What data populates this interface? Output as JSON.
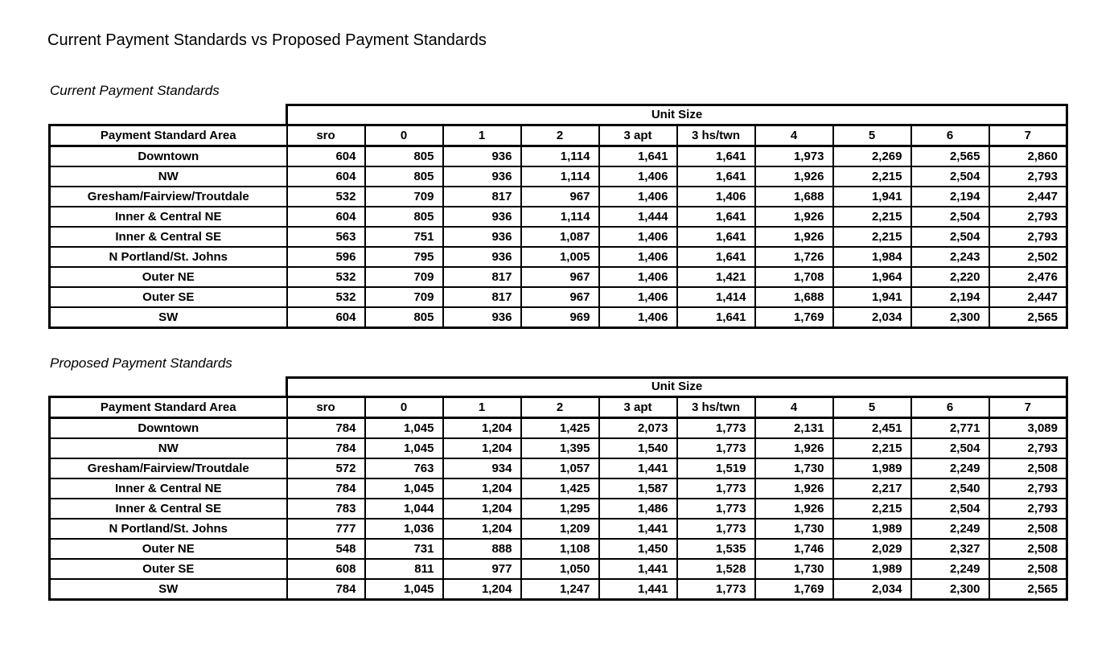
{
  "page_title": "Current Payment Standards vs Proposed Payment Standards",
  "colors": {
    "text": "#000000",
    "background": "#ffffff",
    "table_border": "#000000"
  },
  "tables": [
    {
      "section_label": "Current Payment Standards",
      "unit_size_label": "Unit Size",
      "area_header": "Payment Standard Area",
      "columns": [
        "sro",
        "0",
        "1",
        "2",
        "3 apt",
        "3 hs/twn",
        "4",
        "5",
        "6",
        "7"
      ],
      "rows": [
        {
          "area": "Downtown",
          "values": [
            "604",
            "805",
            "936",
            "1,114",
            "1,641",
            "1,641",
            "1,973",
            "2,269",
            "2,565",
            "2,860"
          ]
        },
        {
          "area": "NW",
          "values": [
            "604",
            "805",
            "936",
            "1,114",
            "1,406",
            "1,641",
            "1,926",
            "2,215",
            "2,504",
            "2,793"
          ]
        },
        {
          "area": "Gresham/Fairview/Troutdale",
          "values": [
            "532",
            "709",
            "817",
            "967",
            "1,406",
            "1,406",
            "1,688",
            "1,941",
            "2,194",
            "2,447"
          ]
        },
        {
          "area": "Inner & Central NE",
          "values": [
            "604",
            "805",
            "936",
            "1,114",
            "1,444",
            "1,641",
            "1,926",
            "2,215",
            "2,504",
            "2,793"
          ]
        },
        {
          "area": "Inner & Central SE",
          "values": [
            "563",
            "751",
            "936",
            "1,087",
            "1,406",
            "1,641",
            "1,926",
            "2,215",
            "2,504",
            "2,793"
          ]
        },
        {
          "area": "N Portland/St. Johns",
          "values": [
            "596",
            "795",
            "936",
            "1,005",
            "1,406",
            "1,641",
            "1,726",
            "1,984",
            "2,243",
            "2,502"
          ]
        },
        {
          "area": "Outer NE",
          "values": [
            "532",
            "709",
            "817",
            "967",
            "1,406",
            "1,421",
            "1,708",
            "1,964",
            "2,220",
            "2,476"
          ]
        },
        {
          "area": "Outer SE",
          "values": [
            "532",
            "709",
            "817",
            "967",
            "1,406",
            "1,414",
            "1,688",
            "1,941",
            "2,194",
            "2,447"
          ]
        },
        {
          "area": "SW",
          "values": [
            "604",
            "805",
            "936",
            "969",
            "1,406",
            "1,641",
            "1,769",
            "2,034",
            "2,300",
            "2,565"
          ]
        }
      ]
    },
    {
      "section_label": "Proposed Payment Standards",
      "unit_size_label": "Unit Size",
      "area_header": "Payment Standard Area",
      "columns": [
        "sro",
        "0",
        "1",
        "2",
        "3 apt",
        "3 hs/twn",
        "4",
        "5",
        "6",
        "7"
      ],
      "rows": [
        {
          "area": "Downtown",
          "values": [
            "784",
            "1,045",
            "1,204",
            "1,425",
            "2,073",
            "1,773",
            "2,131",
            "2,451",
            "2,771",
            "3,089"
          ]
        },
        {
          "area": "NW",
          "values": [
            "784",
            "1,045",
            "1,204",
            "1,395",
            "1,540",
            "1,773",
            "1,926",
            "2,215",
            "2,504",
            "2,793"
          ]
        },
        {
          "area": "Gresham/Fairview/Troutdale",
          "values": [
            "572",
            "763",
            "934",
            "1,057",
            "1,441",
            "1,519",
            "1,730",
            "1,989",
            "2,249",
            "2,508"
          ]
        },
        {
          "area": "Inner & Central NE",
          "values": [
            "784",
            "1,045",
            "1,204",
            "1,425",
            "1,587",
            "1,773",
            "1,926",
            "2,217",
            "2,540",
            "2,793"
          ]
        },
        {
          "area": "Inner & Central SE",
          "values": [
            "783",
            "1,044",
            "1,204",
            "1,295",
            "1,486",
            "1,773",
            "1,926",
            "2,215",
            "2,504",
            "2,793"
          ]
        },
        {
          "area": "N Portland/St. Johns",
          "values": [
            "777",
            "1,036",
            "1,204",
            "1,209",
            "1,441",
            "1,773",
            "1,730",
            "1,989",
            "2,249",
            "2,508"
          ]
        },
        {
          "area": "Outer NE",
          "values": [
            "548",
            "731",
            "888",
            "1,108",
            "1,450",
            "1,535",
            "1,746",
            "2,029",
            "2,327",
            "2,508"
          ]
        },
        {
          "area": "Outer SE",
          "values": [
            "608",
            "811",
            "977",
            "1,050",
            "1,441",
            "1,528",
            "1,730",
            "1,989",
            "2,249",
            "2,508"
          ]
        },
        {
          "area": "SW",
          "values": [
            "784",
            "1,045",
            "1,204",
            "1,247",
            "1,441",
            "1,773",
            "1,769",
            "2,034",
            "2,300",
            "2,565"
          ]
        }
      ]
    }
  ]
}
